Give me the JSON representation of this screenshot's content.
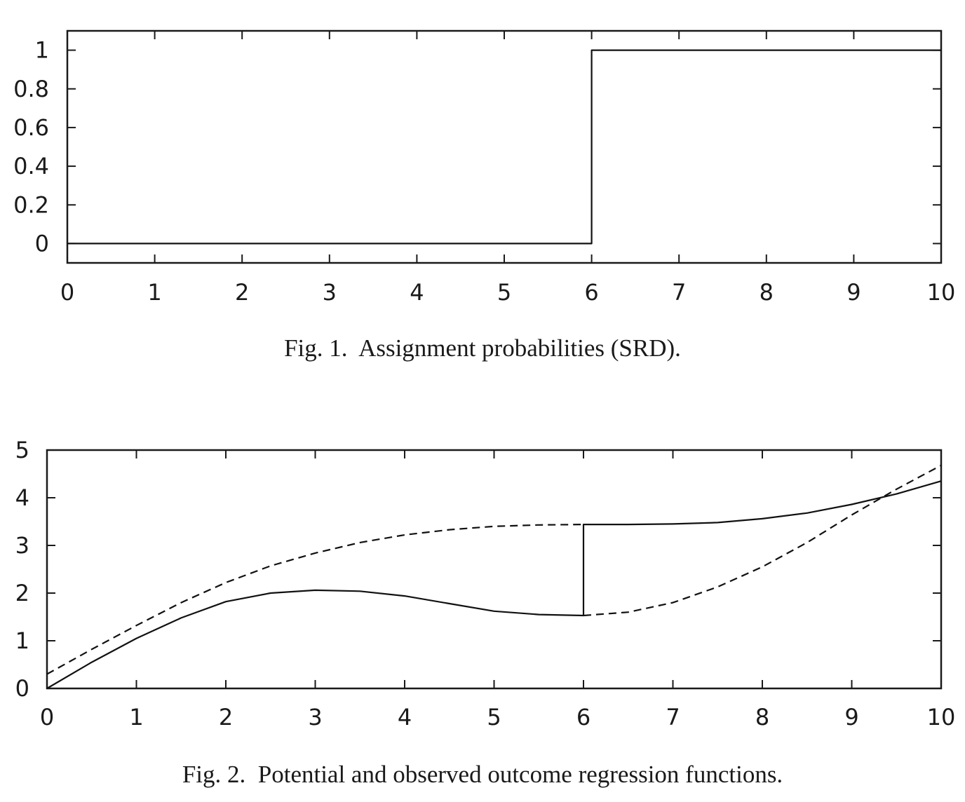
{
  "chart_data": [
    {
      "type": "line",
      "caption": "Fig. 1.  Assignment probabilities (SRD).",
      "xlim": [
        0,
        10
      ],
      "ylim": [
        -0.1,
        1.1
      ],
      "x_ticks": [
        0,
        1,
        2,
        3,
        4,
        5,
        6,
        7,
        8,
        9,
        10
      ],
      "y_ticks": [
        0,
        0.2,
        0.4,
        0.6,
        0.8,
        1
      ],
      "x_tick_labels": [
        "0",
        "1",
        "2",
        "3",
        "4",
        "5",
        "6",
        "7",
        "8",
        "9",
        "10"
      ],
      "y_tick_labels": [
        "0",
        "0.2",
        "0.4",
        "0.6",
        "0.8",
        "1"
      ],
      "grid": false,
      "series": [
        {
          "style": "solid",
          "x": [
            0,
            6,
            6,
            10
          ],
          "y": [
            0,
            0,
            1,
            1
          ]
        }
      ]
    },
    {
      "type": "line",
      "caption": "Fig. 2.  Potential and observed outcome regression functions.",
      "xlim": [
        0,
        10
      ],
      "ylim": [
        0,
        5
      ],
      "x_ticks": [
        0,
        1,
        2,
        3,
        4,
        5,
        6,
        7,
        8,
        9,
        10
      ],
      "y_ticks": [
        0,
        1,
        2,
        3,
        4,
        5
      ],
      "x_tick_labels": [
        "0",
        "1",
        "2",
        "3",
        "4",
        "5",
        "6",
        "7",
        "8",
        "9",
        "10"
      ],
      "y_tick_labels": [
        "0",
        "1",
        "2",
        "3",
        "4",
        "5"
      ],
      "grid": false,
      "series": [
        {
          "style": "solid",
          "x": [
            0,
            0.5,
            1,
            1.5,
            2,
            2.5,
            3,
            3.5,
            4,
            4.5,
            5,
            5.5,
            6,
            6,
            6.5,
            7,
            7.5,
            8,
            8.5,
            9,
            9.5,
            10
          ],
          "y": [
            0,
            0.55,
            1.05,
            1.48,
            1.82,
            2.0,
            2.06,
            2.04,
            1.94,
            1.78,
            1.62,
            1.55,
            1.53,
            3.44,
            3.44,
            3.45,
            3.48,
            3.56,
            3.68,
            3.86,
            4.08,
            4.35
          ]
        },
        {
          "style": "dashed",
          "x": [
            0,
            0.5,
            1,
            1.5,
            2,
            2.5,
            3,
            3.5,
            4,
            4.5,
            5,
            5.5,
            6
          ],
          "y": [
            0.3,
            0.82,
            1.32,
            1.8,
            2.22,
            2.57,
            2.84,
            3.06,
            3.22,
            3.33,
            3.4,
            3.43,
            3.44
          ]
        },
        {
          "style": "dashed",
          "x": [
            6,
            6.5,
            7,
            7.5,
            8,
            8.5,
            9,
            9.5,
            10
          ],
          "y": [
            1.53,
            1.6,
            1.8,
            2.13,
            2.55,
            3.06,
            3.64,
            4.18,
            4.68
          ]
        }
      ]
    }
  ]
}
